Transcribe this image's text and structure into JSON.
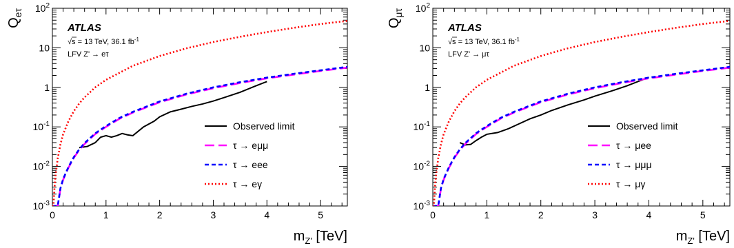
{
  "chart_data": [
    {
      "type": "line",
      "ylabel": "Q",
      "ylabel_sub": "eτ",
      "xlabel": "m",
      "xlabel_sub": "Z'",
      "xlabel_unit": "[TeV]",
      "xlim": [
        0,
        5.5
      ],
      "ylim": [
        0.001,
        100
      ],
      "yscale": "log",
      "x_ticks": [
        0,
        1,
        2,
        3,
        4,
        5
      ],
      "y_ticks": [
        {
          "value": 0.001,
          "base": "10",
          "exp": "-3"
        },
        {
          "value": 0.01,
          "base": "10",
          "exp": "-2"
        },
        {
          "value": 0.1,
          "base": "10",
          "exp": "-1"
        },
        {
          "value": 1,
          "label": "1"
        },
        {
          "value": 10,
          "label": "10"
        },
        {
          "value": 100,
          "base": "10",
          "exp": "2"
        }
      ],
      "atlas_label": "ATLAS",
      "energy_text": "s = 13 TeV, 36.1 fb",
      "energy_sup": "-1",
      "process_text": "LFV Z' → eτ",
      "legend_position": "bottom-right",
      "series": [
        {
          "name": "Observed limit",
          "color": "#000000",
          "style": "solid",
          "x": [
            0.5,
            0.65,
            0.8,
            0.9,
            1.0,
            1.1,
            1.2,
            1.3,
            1.4,
            1.5,
            1.7,
            1.9,
            2.0,
            2.2,
            2.4,
            2.6,
            2.8,
            3.0,
            3.2,
            3.5,
            3.8,
            4.0
          ],
          "y": [
            0.03,
            0.032,
            0.04,
            0.055,
            0.06,
            0.055,
            0.06,
            0.068,
            0.063,
            0.06,
            0.1,
            0.14,
            0.18,
            0.24,
            0.28,
            0.33,
            0.38,
            0.45,
            0.55,
            0.75,
            1.1,
            1.4
          ]
        },
        {
          "name": "τ → eμμ",
          "color": "#ff00ff",
          "style": "longdash",
          "x": [
            0.0,
            0.05,
            0.1,
            0.15,
            0.2,
            0.3,
            0.4,
            0.5,
            0.6,
            0.8,
            1.0,
            1.25,
            1.5,
            2.0,
            2.5,
            3.0,
            3.5,
            4.0,
            4.5,
            5.0,
            5.5
          ],
          "y": [
            0.001,
            0.001,
            0.001,
            0.0027,
            0.0046,
            0.0093,
            0.0166,
            0.026,
            0.037,
            0.066,
            0.1,
            0.16,
            0.23,
            0.42,
            0.66,
            0.95,
            1.29,
            1.69,
            2.1,
            2.6,
            3.15
          ]
        },
        {
          "name": "τ → eee",
          "color": "#0000ff",
          "style": "dash",
          "x": [
            0.0,
            0.05,
            0.1,
            0.15,
            0.2,
            0.3,
            0.4,
            0.5,
            0.6,
            0.8,
            1.0,
            1.25,
            1.5,
            2.0,
            2.5,
            3.0,
            3.5,
            4.0,
            4.5,
            5.0,
            5.5
          ],
          "y": [
            0.001,
            0.001,
            0.001,
            0.0028,
            0.0048,
            0.0097,
            0.0172,
            0.027,
            0.039,
            0.069,
            0.105,
            0.168,
            0.24,
            0.44,
            0.69,
            1.0,
            1.35,
            1.76,
            2.2,
            2.7,
            3.3
          ]
        },
        {
          "name": "τ → eγ",
          "color": "#ff0000",
          "style": "dot",
          "x": [
            0.0,
            0.02,
            0.04,
            0.06,
            0.1,
            0.15,
            0.2,
            0.3,
            0.4,
            0.5,
            0.6,
            0.8,
            1.0,
            1.5,
            2.0,
            2.5,
            3.0,
            3.5,
            4.0,
            4.5,
            5.0,
            5.5
          ],
          "y": [
            0.001,
            0.001,
            0.003,
            0.006,
            0.016,
            0.036,
            0.065,
            0.14,
            0.25,
            0.39,
            0.56,
            1.0,
            1.55,
            3.5,
            6.2,
            9.7,
            14,
            19,
            25,
            32,
            40,
            48
          ]
        }
      ]
    },
    {
      "type": "line",
      "ylabel": "Q",
      "ylabel_sub": "μτ",
      "xlabel": "m",
      "xlabel_sub": "Z'",
      "xlabel_unit": "[TeV]",
      "xlim": [
        0,
        5.5
      ],
      "ylim": [
        0.001,
        100
      ],
      "yscale": "log",
      "x_ticks": [
        0,
        1,
        2,
        3,
        4,
        5
      ],
      "y_ticks": [
        {
          "value": 0.001,
          "base": "10",
          "exp": "-3"
        },
        {
          "value": 0.01,
          "base": "10",
          "exp": "-2"
        },
        {
          "value": 0.1,
          "base": "10",
          "exp": "-1"
        },
        {
          "value": 1,
          "label": "1"
        },
        {
          "value": 10,
          "label": "10"
        },
        {
          "value": 100,
          "base": "10",
          "exp": "2"
        }
      ],
      "atlas_label": "ATLAS",
      "energy_text": "s = 13 TeV, 36.1 fb",
      "energy_sup": "-1",
      "process_text": "LFV Z' → μτ",
      "legend_position": "bottom-right",
      "series": [
        {
          "name": "Observed limit",
          "color": "#000000",
          "style": "solid",
          "x": [
            0.5,
            0.6,
            0.7,
            0.8,
            0.9,
            1.0,
            1.2,
            1.4,
            1.6,
            1.8,
            2.0,
            2.2,
            2.5,
            2.8,
            3.0,
            3.3,
            3.6,
            4.0
          ],
          "y": [
            0.04,
            0.035,
            0.036,
            0.045,
            0.055,
            0.065,
            0.072,
            0.09,
            0.12,
            0.16,
            0.2,
            0.26,
            0.36,
            0.48,
            0.6,
            0.8,
            1.1,
            1.8
          ]
        },
        {
          "name": "τ → μee",
          "color": "#ff00ff",
          "style": "longdash",
          "x": [
            0.0,
            0.05,
            0.1,
            0.15,
            0.2,
            0.3,
            0.4,
            0.5,
            0.6,
            0.8,
            1.0,
            1.25,
            1.5,
            2.0,
            2.5,
            3.0,
            3.5,
            4.0,
            4.5,
            5.0,
            5.5
          ],
          "y": [
            0.001,
            0.001,
            0.001,
            0.0027,
            0.0046,
            0.0093,
            0.0166,
            0.026,
            0.037,
            0.066,
            0.1,
            0.16,
            0.23,
            0.42,
            0.66,
            0.95,
            1.29,
            1.69,
            2.1,
            2.6,
            3.15
          ]
        },
        {
          "name": "τ → μμμ",
          "color": "#0000ff",
          "style": "dash",
          "x": [
            0.0,
            0.05,
            0.1,
            0.15,
            0.2,
            0.3,
            0.4,
            0.5,
            0.6,
            0.8,
            1.0,
            1.25,
            1.5,
            2.0,
            2.5,
            3.0,
            3.5,
            4.0,
            4.5,
            5.0,
            5.5
          ],
          "y": [
            0.001,
            0.001,
            0.001,
            0.0028,
            0.0048,
            0.0097,
            0.0172,
            0.027,
            0.039,
            0.069,
            0.105,
            0.168,
            0.24,
            0.44,
            0.69,
            1.0,
            1.35,
            1.76,
            2.2,
            2.7,
            3.3
          ]
        },
        {
          "name": "τ → μγ",
          "color": "#ff0000",
          "style": "dot",
          "x": [
            0.0,
            0.02,
            0.04,
            0.06,
            0.1,
            0.15,
            0.2,
            0.3,
            0.4,
            0.5,
            0.6,
            0.8,
            1.0,
            1.5,
            2.0,
            2.5,
            3.0,
            3.5,
            4.0,
            4.5,
            5.0,
            5.5
          ],
          "y": [
            0.001,
            0.001,
            0.003,
            0.006,
            0.016,
            0.036,
            0.065,
            0.14,
            0.25,
            0.39,
            0.56,
            1.0,
            1.55,
            3.5,
            6.2,
            9.7,
            14,
            19,
            25,
            32,
            40,
            48
          ]
        }
      ]
    }
  ]
}
